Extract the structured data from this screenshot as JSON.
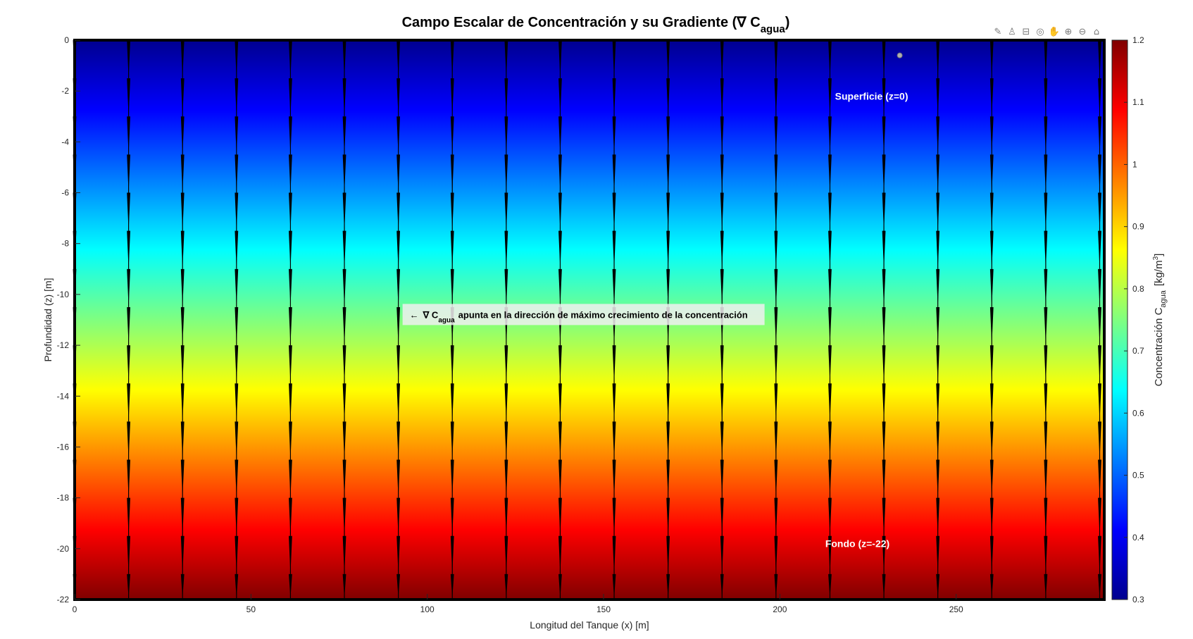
{
  "chart_data": {
    "type": "heatmap",
    "title": "Campo Escalar de Concentración y su Gradiente (∇ C",
    "title_sub": "agua",
    "title_end": ")",
    "xlabel": "Longitud del Tanque (x) [m]",
    "ylabel": "Profundidad (z) [m]",
    "xlim": [
      0,
      292
    ],
    "ylim": [
      -22,
      0
    ],
    "xticks": [
      0,
      50,
      100,
      150,
      200,
      250
    ],
    "yticks": [
      0,
      -2,
      -4,
      -6,
      -8,
      -10,
      -12,
      -14,
      -16,
      -18,
      -20,
      -22
    ],
    "field": "concentration increases linearly with depth: C = 0.3 at z=0 to C = 1.2 at z=-22",
    "colormap": "jet",
    "colorbar": {
      "label": "Concentración C",
      "label_sub": "agua",
      "label_unit": "[kg/m",
      "label_unit_sup": "3",
      "label_end": "]",
      "range": [
        0.3,
        1.2
      ],
      "ticks": [
        "0.3",
        "0.4",
        "0.5",
        "0.6",
        "0.7",
        "0.8",
        "0.9",
        "1",
        "1.1",
        "1.2"
      ],
      "position": "right"
    },
    "quiver": {
      "x": [
        0,
        15.3,
        30.6,
        45.9,
        61.2,
        76.5,
        91.8,
        107.1,
        122.4,
        137.7,
        153,
        168.3,
        183.6,
        198.9,
        214.2,
        229.5,
        244.8,
        260.1,
        275.4,
        290.7
      ],
      "z": [
        0,
        -1.5,
        -3,
        -4.5,
        -6,
        -7.5,
        -9,
        -10.5,
        -12,
        -13.5,
        -15,
        -16.5,
        -18,
        -19.5,
        -21
      ],
      "u": 0,
      "v": -1.5,
      "color": "#000000"
    },
    "marker": {
      "x": 234,
      "z": -0.6,
      "color": "#b0b0b0"
    },
    "annotations": [
      {
        "text": "Superficie (z=0)",
        "x": 226,
        "z": -2.2,
        "color": "#ffffff"
      },
      {
        "text": "Fondo (z=-22)",
        "x": 222,
        "z": -19.8,
        "color": "#ffffff"
      }
    ],
    "gradient_note": {
      "arrow": "←",
      "nabla": "∇ C",
      "sub": "agua",
      "rest": "apunta en la dirección de máximo crecimiento de la concentración",
      "x": 93,
      "z": -10.9
    },
    "grid": false
  },
  "toolbar": {
    "icons": [
      "edit-plot-icon",
      "brush-icon",
      "data-tips-icon",
      "rotate-3d-icon",
      "pan-icon",
      "zoom-in-icon",
      "zoom-out-icon",
      "home-icon"
    ],
    "glyphs": [
      "✎",
      "♙",
      "⊟",
      "◎",
      "✋",
      "⊕",
      "⊖",
      "⌂"
    ]
  }
}
